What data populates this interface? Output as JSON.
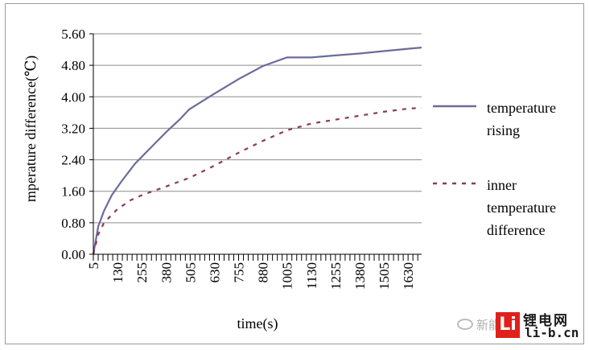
{
  "chart_data": {
    "type": "line",
    "title": "",
    "xlabel": "time(s)",
    "ylabel": "temperature difference(℃)",
    "ylabel_visible": "mperature difference(℃)",
    "ylim": [
      0,
      5.6
    ],
    "xlim": [
      5,
      1700
    ],
    "y_ticks": [
      "0.00",
      "0.80",
      "1.60",
      "2.40",
      "3.20",
      "4.00",
      "4.80",
      "5.60"
    ],
    "x_ticks": [
      "5",
      "130",
      "255",
      "380",
      "505",
      "630",
      "755",
      "880",
      "1005",
      "1130",
      "1255",
      "1380",
      "1505",
      "1630"
    ],
    "grid": "horizontal",
    "legend_position": "right",
    "series": [
      {
        "name": "temperature rising",
        "legend_lines": [
          "temperature",
          "rising"
        ],
        "style": "solid",
        "color": "#6b6b9c",
        "points": [
          [
            5,
            0.0
          ],
          [
            30,
            0.7
          ],
          [
            60,
            1.1
          ],
          [
            100,
            1.5
          ],
          [
            150,
            1.85
          ],
          [
            220,
            2.3
          ],
          [
            300,
            2.7
          ],
          [
            380,
            3.1
          ],
          [
            450,
            3.42
          ],
          [
            500,
            3.68
          ],
          [
            630,
            4.08
          ],
          [
            755,
            4.45
          ],
          [
            880,
            4.78
          ],
          [
            1005,
            5.0
          ],
          [
            1130,
            5.0
          ],
          [
            1255,
            5.05
          ],
          [
            1380,
            5.1
          ],
          [
            1505,
            5.16
          ],
          [
            1630,
            5.22
          ],
          [
            1700,
            5.25
          ]
        ]
      },
      {
        "name": "inner temperature difference",
        "legend_lines": [
          "inner",
          "temperature",
          "difference"
        ],
        "style": "dashed",
        "color": "#8b3a5a",
        "points": [
          [
            5,
            0.0
          ],
          [
            30,
            0.5
          ],
          [
            60,
            0.8
          ],
          [
            130,
            1.15
          ],
          [
            200,
            1.38
          ],
          [
            255,
            1.5
          ],
          [
            380,
            1.72
          ],
          [
            505,
            1.95
          ],
          [
            630,
            2.25
          ],
          [
            755,
            2.58
          ],
          [
            880,
            2.88
          ],
          [
            1005,
            3.15
          ],
          [
            1130,
            3.32
          ],
          [
            1255,
            3.42
          ],
          [
            1380,
            3.52
          ],
          [
            1505,
            3.62
          ],
          [
            1630,
            3.7
          ],
          [
            1700,
            3.72
          ]
        ]
      }
    ]
  },
  "watermark": {
    "prefix": "新能",
    "logo_mark": "Li",
    "cn_name": "锂电网",
    "domain": "li-b.cn"
  }
}
